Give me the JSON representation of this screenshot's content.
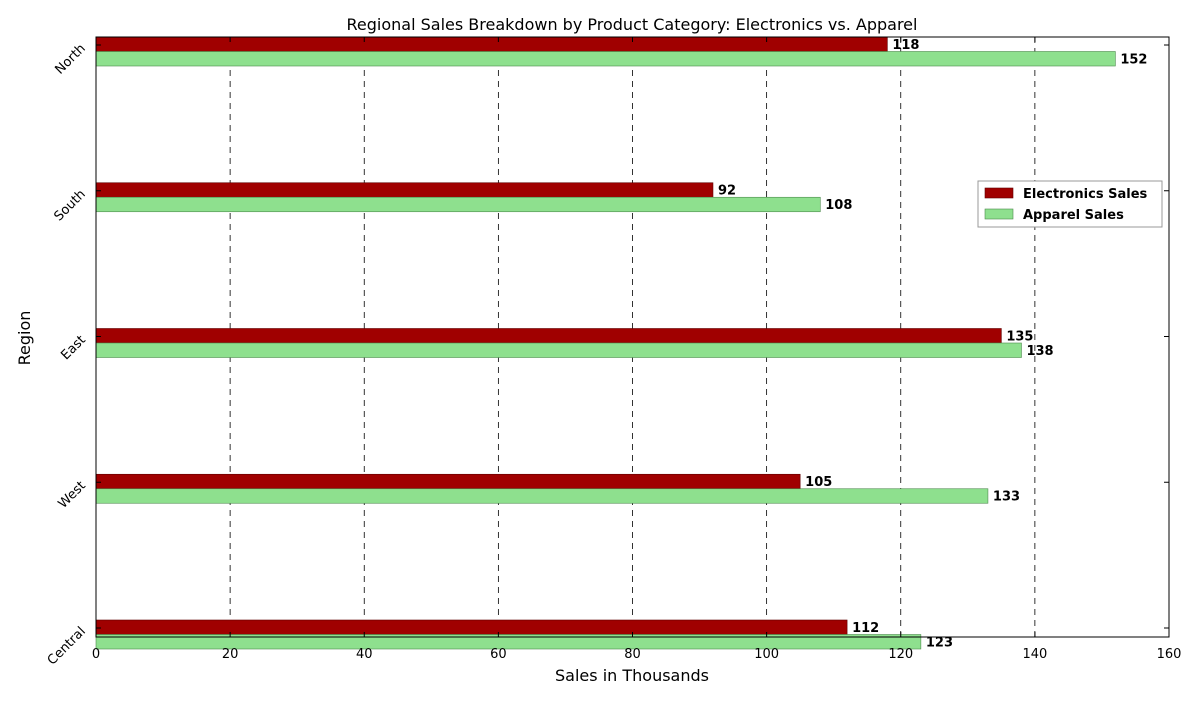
{
  "chart_data": {
    "type": "bar",
    "orientation": "horizontal",
    "title": "Regional Sales Breakdown by Product Category: Electronics vs. Apparel",
    "xlabel": "Sales in Thousands",
    "ylabel": "Region",
    "categories": [
      "North",
      "South",
      "East",
      "West",
      "Central"
    ],
    "series": [
      {
        "name": "Electronics Sales",
        "values": [
          118,
          92,
          135,
          105,
          112
        ],
        "color": "#a00000"
      },
      {
        "name": "Apparel Sales",
        "values": [
          152,
          108,
          138,
          133,
          123
        ],
        "color": "#8ee08e"
      }
    ],
    "xlim": [
      0,
      160
    ],
    "xticks": [
      0,
      20,
      40,
      60,
      80,
      100,
      120,
      140,
      160
    ],
    "grid": "vertical dashed",
    "legend_position": "right"
  }
}
